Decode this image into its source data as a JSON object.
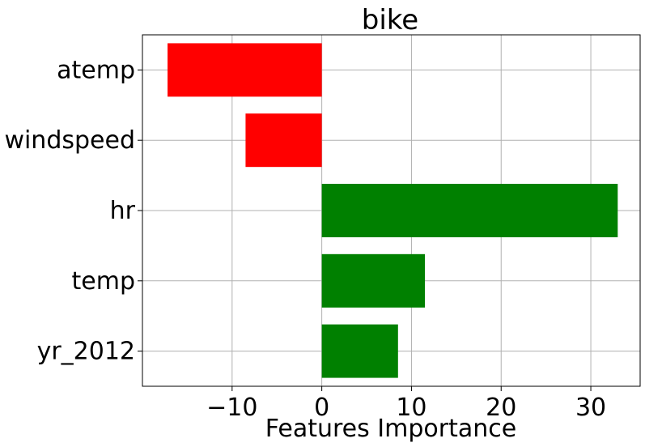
{
  "chart_data": {
    "type": "bar",
    "orientation": "horizontal",
    "title": "bike",
    "xlabel": "Features Importance",
    "ylabel": "",
    "categories": [
      "atemp",
      "windspeed",
      "hr",
      "temp",
      "yr_2012"
    ],
    "values": [
      -17.2,
      -8.5,
      33.0,
      11.5,
      8.5
    ],
    "bar_colors": [
      "#ff0000",
      "#ff0000",
      "#008000",
      "#008000",
      "#008000"
    ],
    "xlim": [
      -20,
      35.5
    ],
    "xticks": [
      -10,
      0,
      10,
      20,
      30
    ],
    "xtick_labels": [
      "−10",
      "0",
      "10",
      "20",
      "30"
    ],
    "grid": true
  }
}
